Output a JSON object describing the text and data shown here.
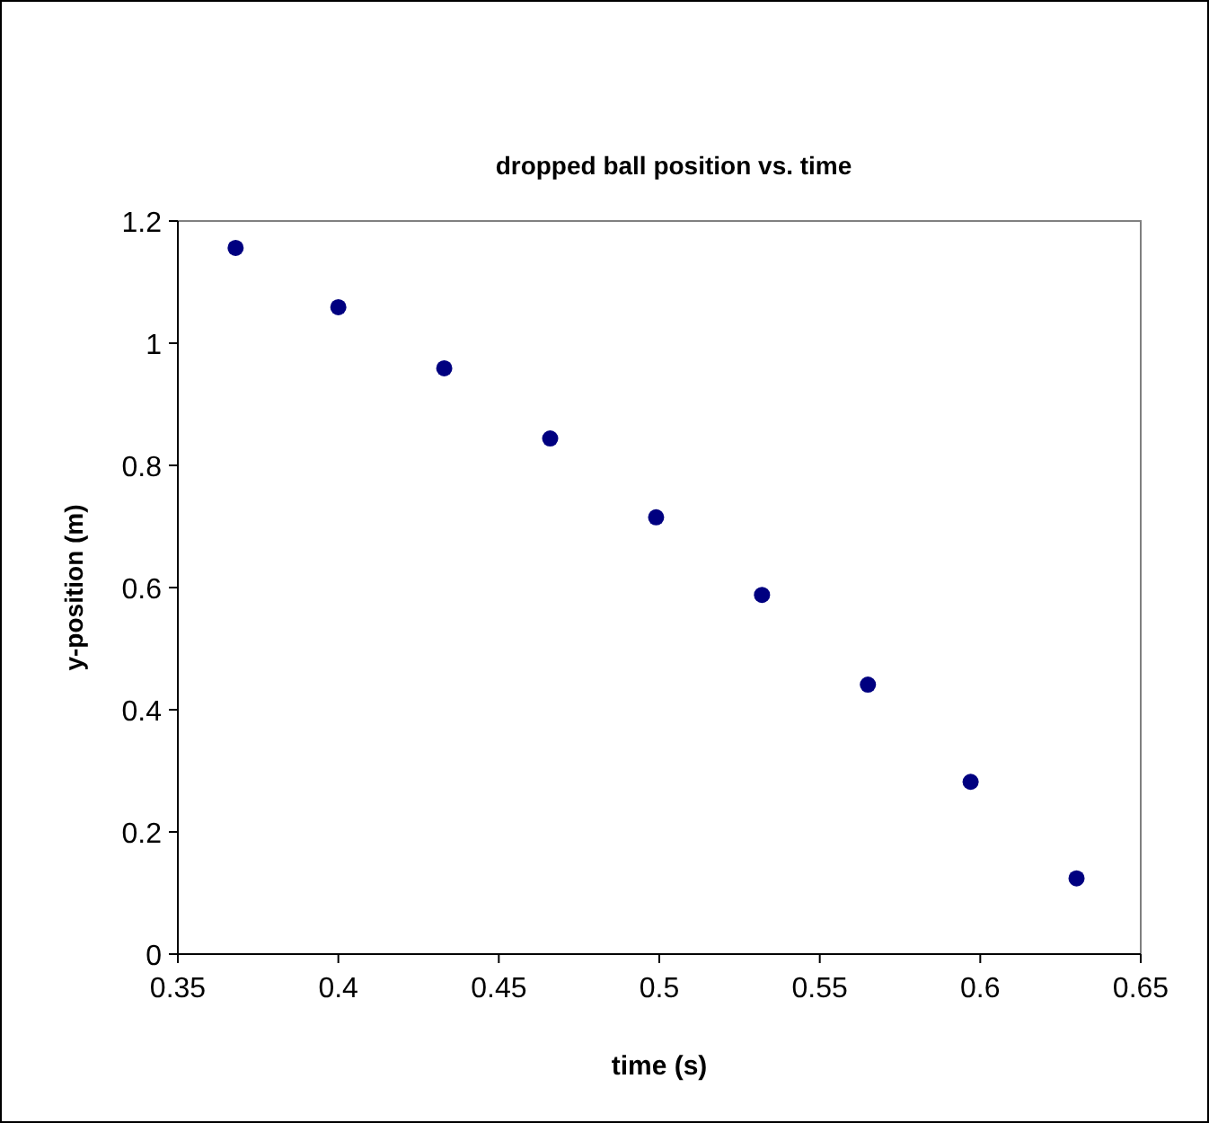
{
  "chart_data": {
    "type": "scatter",
    "title": "dropped ball position vs. time",
    "xlabel": "time (s)",
    "ylabel": "y-position (m)",
    "x": [
      0.368,
      0.4,
      0.433,
      0.466,
      0.499,
      0.532,
      0.565,
      0.597,
      0.63
    ],
    "series": [
      {
        "color": "#000080",
        "values": [
          1.156,
          1.059,
          0.959,
          0.844,
          0.715,
          0.588,
          0.441,
          0.282,
          0.124
        ]
      }
    ],
    "xlim": [
      0.35,
      0.65
    ],
    "xticks": [
      0.35,
      0.4,
      0.45,
      0.5,
      0.55,
      0.6,
      0.65
    ],
    "ylim": [
      0,
      1.2
    ],
    "yticks": [
      0,
      0.2,
      0.4,
      0.6,
      0.8,
      1,
      1.2
    ],
    "marker": "circle",
    "grid": false
  }
}
